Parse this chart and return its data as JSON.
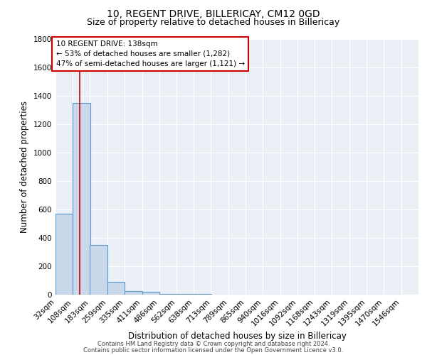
{
  "title": "10, REGENT DRIVE, BILLERICAY, CM12 0GD",
  "subtitle": "Size of property relative to detached houses in Billericay",
  "xlabel": "Distribution of detached houses by size in Billericay",
  "ylabel": "Number of detached properties",
  "bin_labels": [
    "32sqm",
    "108sqm",
    "183sqm",
    "259sqm",
    "335sqm",
    "411sqm",
    "486sqm",
    "562sqm",
    "638sqm",
    "713sqm",
    "789sqm",
    "865sqm",
    "940sqm",
    "1016sqm",
    "1092sqm",
    "1168sqm",
    "1243sqm",
    "1319sqm",
    "1395sqm",
    "1470sqm",
    "1546sqm"
  ],
  "bin_edges": [
    32,
    108,
    183,
    259,
    335,
    411,
    486,
    562,
    638,
    713,
    789,
    865,
    940,
    1016,
    1092,
    1168,
    1243,
    1319,
    1395,
    1470,
    1546
  ],
  "bar_heights": [
    570,
    1350,
    350,
    90,
    25,
    20,
    5,
    5,
    5,
    0,
    0,
    0,
    0,
    0,
    0,
    0,
    0,
    0,
    0,
    0
  ],
  "bar_color": "#c8d8ea",
  "bar_edge_color": "#5a9bc9",
  "property_size": 138,
  "red_line_color": "#cc0000",
  "annotation_line1": "10 REGENT DRIVE: 138sqm",
  "annotation_line2": "← 53% of detached houses are smaller (1,282)",
  "annotation_line3": "47% of semi-detached houses are larger (1,121) →",
  "annotation_box_color": "#ffffff",
  "annotation_box_edge": "#cc0000",
  "ylim": [
    0,
    1800
  ],
  "yticks": [
    0,
    200,
    400,
    600,
    800,
    1000,
    1200,
    1400,
    1600,
    1800
  ],
  "bg_color": "#eaf0f6",
  "footer1": "Contains HM Land Registry data © Crown copyright and database right 2024.",
  "footer2": "Contains public sector information licensed under the Open Government Licence v3.0.",
  "title_fontsize": 10,
  "subtitle_fontsize": 9,
  "axis_label_fontsize": 8.5,
  "tick_fontsize": 7.5,
  "annotation_fontsize": 7.5,
  "footer_fontsize": 6
}
